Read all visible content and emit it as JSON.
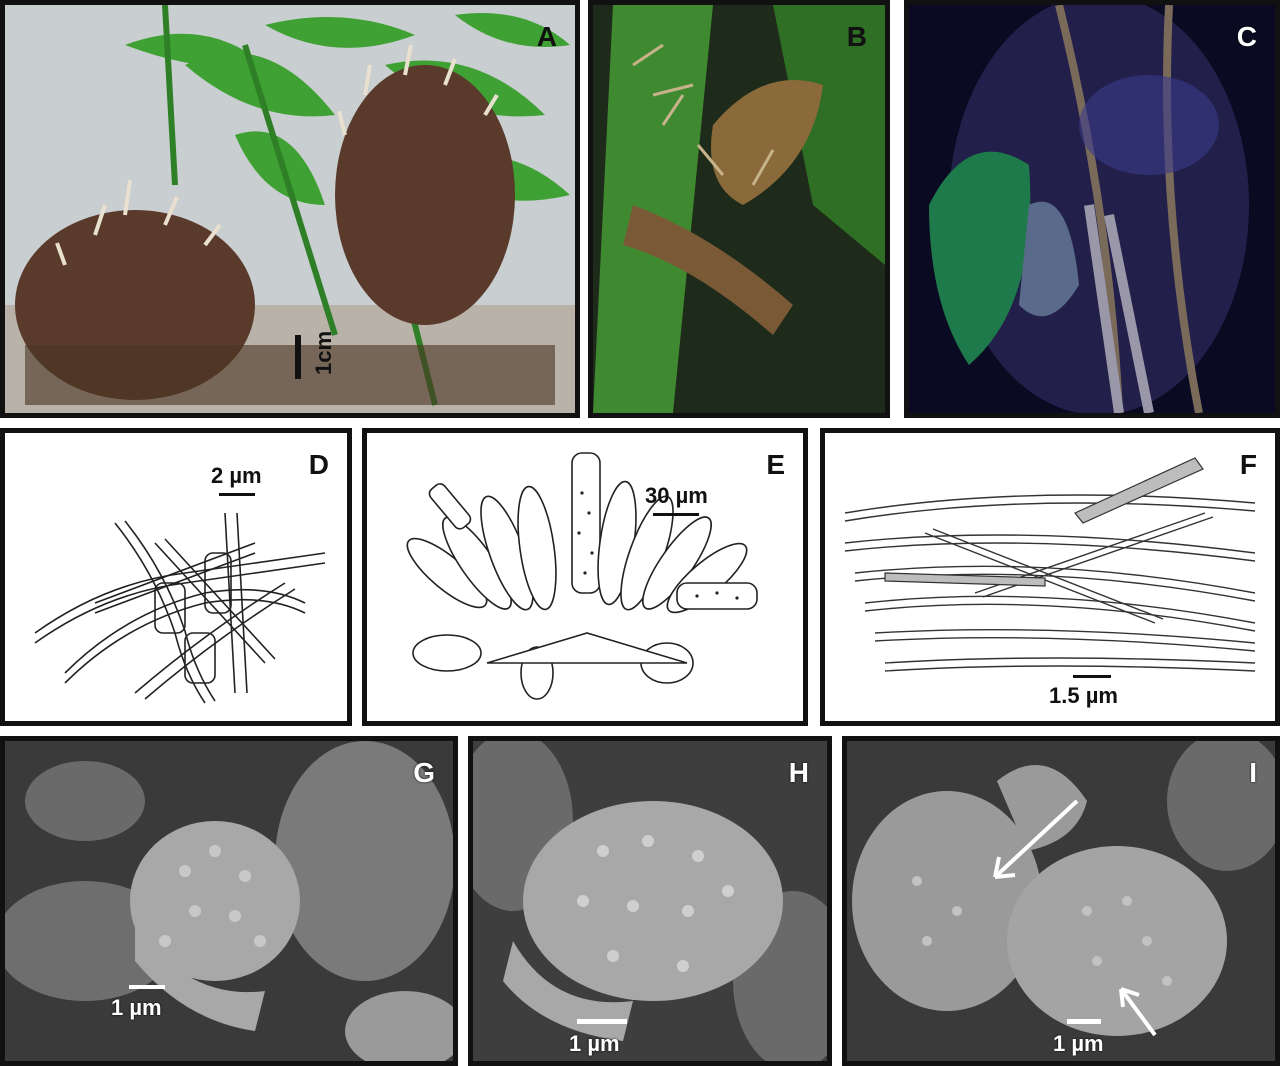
{
  "panels": [
    {
      "label": "A",
      "scale": "1cm"
    },
    {
      "label": "B",
      "scale": ""
    },
    {
      "label": "C",
      "scale": ""
    },
    {
      "label": "D",
      "scale": "2 µm"
    },
    {
      "label": "E",
      "scale": "30 µm"
    },
    {
      "label": "F",
      "scale": "1.5 µm"
    },
    {
      "label": "G",
      "scale": "1 µm"
    },
    {
      "label": "H",
      "scale": "1 µm"
    },
    {
      "label": "I",
      "scale": "1 µm"
    }
  ],
  "colors": {
    "border": "#111111",
    "leaf_green": "#3a9a2a",
    "fruitbody_brown": "#5a3a2a",
    "sem_gray": "#8a8a8a"
  }
}
